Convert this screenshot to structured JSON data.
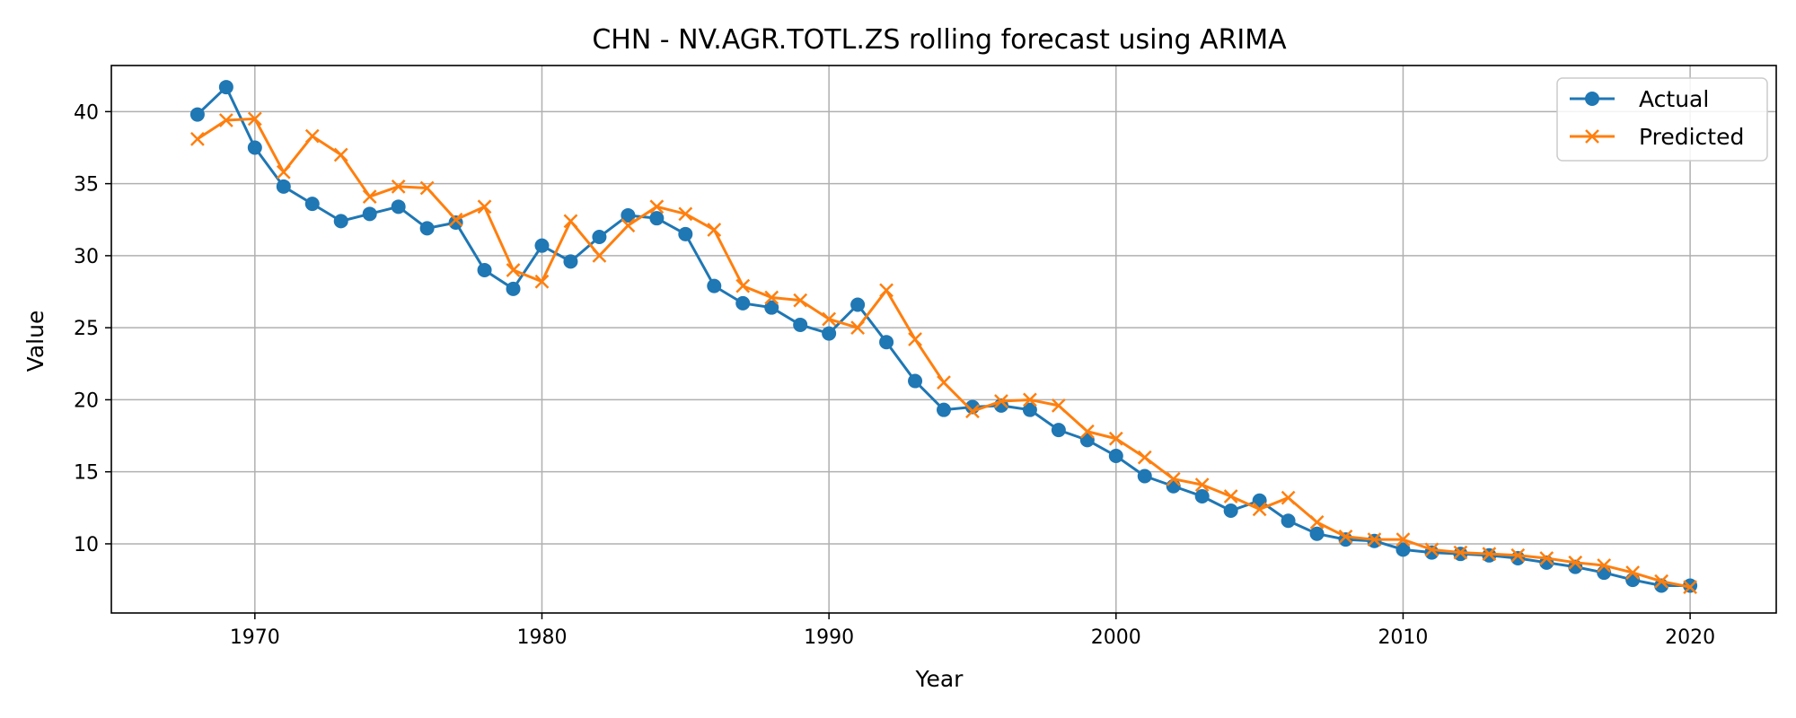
{
  "chart_data": {
    "type": "line",
    "title": "CHN - NV.AGR.TOTL.ZS rolling forecast using ARIMA",
    "xlabel": "Year",
    "ylabel": "Value",
    "xlim": [
      1965,
      2023
    ],
    "ylim": [
      5.2,
      43.2
    ],
    "xticks": [
      1970,
      1980,
      1990,
      2000,
      2010,
      2020
    ],
    "yticks": [
      10,
      15,
      20,
      25,
      30,
      35,
      40
    ],
    "grid": true,
    "legend_position": "top-right",
    "x": [
      1968,
      1969,
      1970,
      1971,
      1972,
      1973,
      1974,
      1975,
      1976,
      1977,
      1978,
      1979,
      1980,
      1981,
      1982,
      1983,
      1984,
      1985,
      1986,
      1987,
      1988,
      1989,
      1990,
      1991,
      1992,
      1993,
      1994,
      1995,
      1996,
      1997,
      1998,
      1999,
      2000,
      2001,
      2002,
      2003,
      2004,
      2005,
      2006,
      2007,
      2008,
      2009,
      2010,
      2011,
      2012,
      2013,
      2014,
      2015,
      2016,
      2017,
      2018,
      2019,
      2020
    ],
    "series": [
      {
        "name": "Actual",
        "color": "#1f77b4",
        "marker": "circle",
        "values": [
          39.8,
          41.7,
          37.5,
          34.8,
          33.6,
          32.4,
          32.9,
          33.4,
          31.9,
          32.3,
          29.0,
          27.7,
          30.7,
          29.6,
          31.3,
          32.8,
          32.6,
          31.5,
          27.9,
          26.7,
          26.4,
          25.2,
          24.6,
          26.6,
          24.0,
          21.3,
          19.3,
          19.5,
          19.6,
          19.3,
          17.9,
          17.2,
          16.1,
          14.7,
          14.0,
          13.3,
          12.3,
          13.0,
          11.6,
          10.7,
          10.3,
          10.2,
          9.6,
          9.4,
          9.3,
          9.2,
          9.0,
          8.7,
          8.4,
          8.0,
          7.5,
          7.1,
          7.1
        ]
      },
      {
        "name": "Predicted",
        "color": "#ff7f0e",
        "marker": "x",
        "values": [
          38.1,
          39.4,
          39.5,
          35.8,
          38.3,
          37.0,
          34.1,
          34.8,
          34.7,
          32.5,
          33.4,
          29.0,
          28.2,
          32.4,
          30.0,
          32.1,
          33.4,
          32.9,
          31.8,
          27.9,
          27.1,
          26.9,
          25.6,
          25.0,
          27.6,
          24.2,
          21.2,
          19.2,
          19.9,
          20.0,
          19.6,
          17.8,
          17.3,
          16.0,
          14.5,
          14.1,
          13.3,
          12.4,
          13.2,
          11.5,
          10.5,
          10.3,
          10.3,
          9.6,
          9.4,
          9.3,
          9.2,
          9.0,
          8.7,
          8.5,
          8.0,
          7.4,
          7.0
        ]
      }
    ]
  }
}
